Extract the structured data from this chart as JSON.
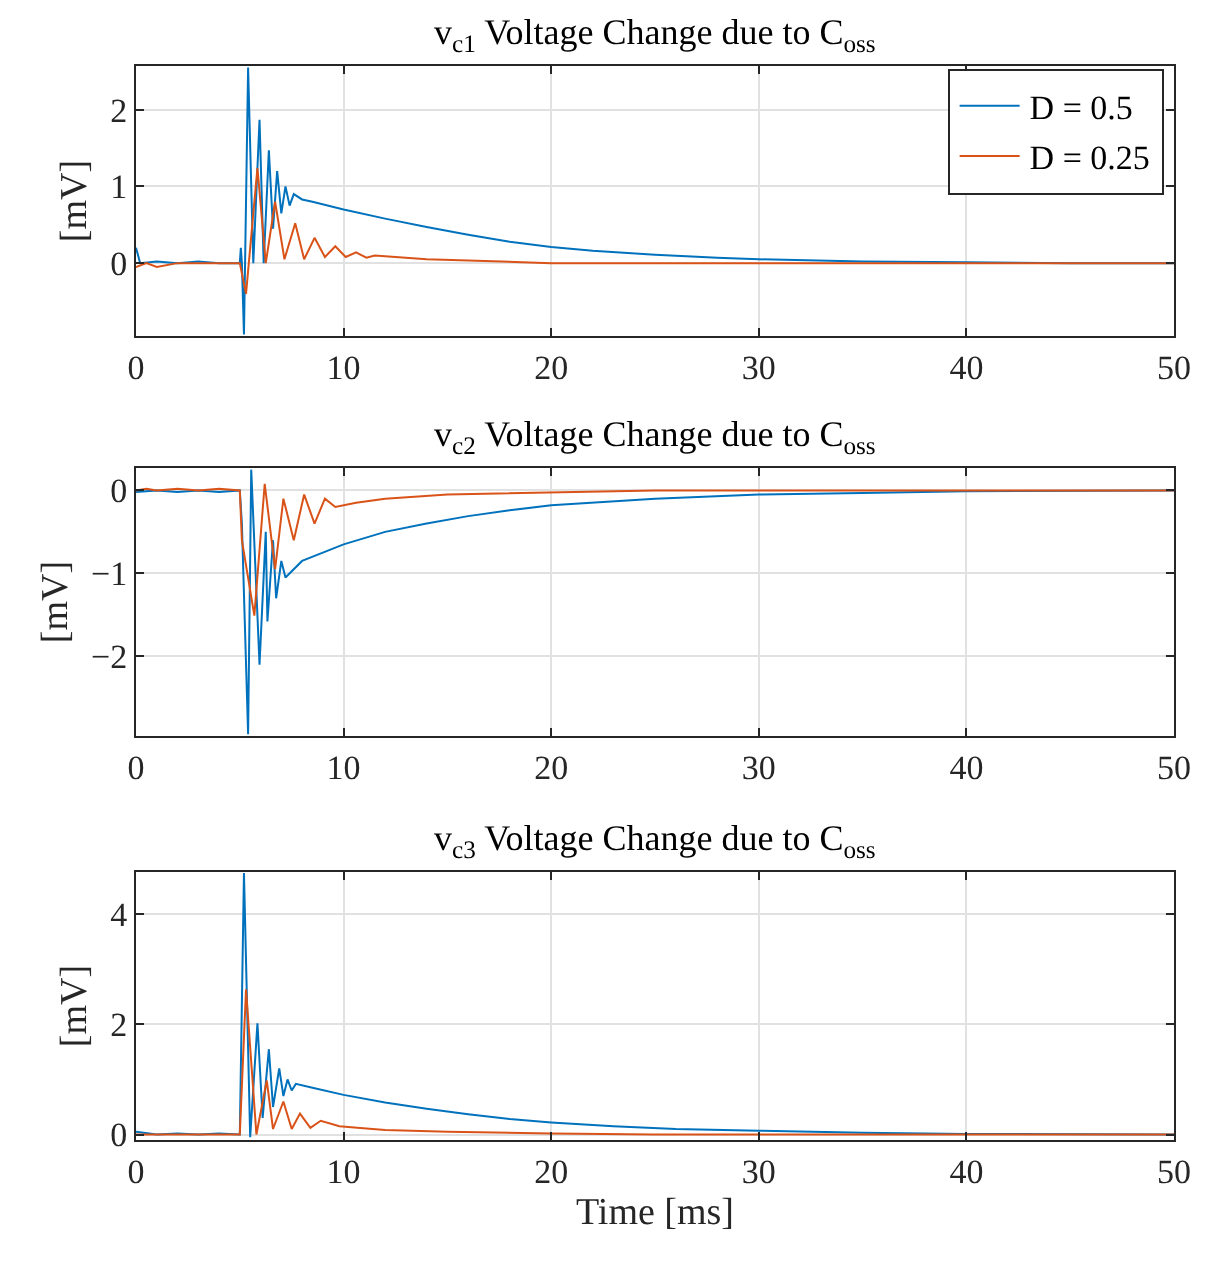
{
  "chart_data": [
    {
      "type": "line",
      "title": "v$_{c1}$ Voltage Change due to C$_{oss}$",
      "ylabel": "[mV]",
      "xlim": [
        0,
        50
      ],
      "xticks": [
        0,
        10,
        20,
        30,
        40,
        50
      ],
      "ylim": [
        -0.95,
        2.57
      ],
      "yticks": [
        0,
        1,
        2
      ],
      "grid": true,
      "legend": "top right",
      "line_style": "solid",
      "series": [
        {
          "name": "D = 0.5",
          "color": "#0072bd",
          "x": [
            0,
            0.2,
            1,
            2,
            3,
            4,
            5,
            5.05,
            5.1,
            5.2,
            5.4,
            5.65,
            5.95,
            6.15,
            6.4,
            6.6,
            6.8,
            7.0,
            7.2,
            7.4,
            7.6,
            8.0,
            8.5,
            10,
            12,
            14,
            16,
            18,
            20,
            22,
            25,
            28,
            30,
            35,
            40,
            45,
            50
          ],
          "values": [
            0.2,
            0,
            0.02,
            0,
            0.02,
            0,
            0,
            0.2,
            0,
            -0.93,
            2.55,
            0,
            1.87,
            0,
            1.47,
            0.45,
            1.2,
            0.65,
            1.0,
            0.75,
            0.9,
            0.83,
            0.8,
            0.7,
            0.58,
            0.47,
            0.37,
            0.28,
            0.21,
            0.16,
            0.11,
            0.07,
            0.05,
            0.02,
            0.01,
            0,
            0
          ]
        },
        {
          "name": "D = 0.25",
          "color": "#d95319",
          "x": [
            0,
            0.5,
            1,
            2,
            3,
            4,
            5,
            5.3,
            5.85,
            6.25,
            6.7,
            7.15,
            7.67,
            8.1,
            8.6,
            9.1,
            9.6,
            10.1,
            10.6,
            11.1,
            11.5,
            14,
            20,
            30,
            40,
            50
          ],
          "values": [
            -0.05,
            0,
            -0.05,
            0,
            0,
            0,
            0,
            -0.4,
            1.24,
            0,
            0.8,
            0.05,
            0.52,
            0.05,
            0.33,
            0.08,
            0.22,
            0.08,
            0.14,
            0.07,
            0.1,
            0.05,
            0,
            0,
            0,
            0
          ]
        }
      ]
    },
    {
      "type": "line",
      "title": "v$_{c2}$ Voltage Change due to C$_{oss}$",
      "ylabel": "[mV]",
      "xlim": [
        0,
        50
      ],
      "xticks": [
        0,
        10,
        20,
        30,
        40,
        50
      ],
      "ylim": [
        -2.96,
        0.27
      ],
      "yticks": [
        -2,
        -1,
        0
      ],
      "grid": true,
      "line_style": "solid",
      "series": [
        {
          "color": "#0072bd",
          "x": [
            0,
            1,
            2,
            3,
            4,
            5,
            5.1,
            5.4,
            5.55,
            5.95,
            6.25,
            6.33,
            6.6,
            6.75,
            7.0,
            7.2,
            8,
            9,
            10,
            12,
            14,
            16,
            18,
            20,
            25,
            30,
            35,
            40,
            50
          ],
          "values": [
            -0.02,
            0,
            -0.02,
            0,
            -0.02,
            0,
            -0.4,
            -2.94,
            0.25,
            -2.1,
            -0.5,
            -1.58,
            -0.6,
            -1.3,
            -0.85,
            -1.05,
            -0.85,
            -0.75,
            -0.65,
            -0.5,
            -0.4,
            -0.31,
            -0.24,
            -0.18,
            -0.1,
            -0.05,
            -0.03,
            -0.01,
            0
          ]
        },
        {
          "color": "#d95319",
          "x": [
            0,
            0.5,
            1,
            2,
            3,
            4,
            5,
            5.1,
            5.7,
            6.2,
            6.7,
            7.1,
            7.6,
            8.1,
            8.6,
            9.1,
            9.6,
            10.6,
            12,
            15,
            25,
            35,
            50
          ],
          "values": [
            0,
            0.02,
            0,
            0.02,
            0,
            0.02,
            0,
            -0.6,
            -1.51,
            0.08,
            -0.95,
            -0.1,
            -0.6,
            -0.05,
            -0.4,
            -0.1,
            -0.2,
            -0.15,
            -0.1,
            -0.05,
            0,
            0,
            0
          ]
        }
      ]
    },
    {
      "type": "line",
      "title": "v$_{c3}$ Voltage Change due to C$_{oss}$",
      "ylabel": "[mV]",
      "xlabel": "Time [ms]",
      "xlim": [
        0,
        50
      ],
      "xticks": [
        0,
        10,
        20,
        30,
        40,
        50
      ],
      "ylim": [
        -0.1,
        4.77
      ],
      "yticks": [
        0,
        2,
        4
      ],
      "grid": true,
      "line_style": "solid",
      "series": [
        {
          "color": "#0072bd",
          "x": [
            0,
            1,
            2,
            3,
            4,
            5,
            5.2,
            5.5,
            5.85,
            6.1,
            6.4,
            6.6,
            6.9,
            7.1,
            7.3,
            7.5,
            7.7,
            8.5,
            10,
            12,
            14,
            16,
            18,
            20,
            23,
            26,
            30,
            35,
            40,
            50
          ],
          "values": [
            0.05,
            0,
            0.02,
            0,
            0.02,
            0,
            4.75,
            -0.05,
            2.02,
            0.3,
            1.55,
            0.5,
            1.2,
            0.7,
            1.0,
            0.8,
            0.92,
            0.85,
            0.72,
            0.58,
            0.47,
            0.37,
            0.28,
            0.22,
            0.15,
            0.1,
            0.07,
            0.03,
            0.01,
            0
          ]
        },
        {
          "color": "#d95319",
          "x": [
            0,
            1,
            2,
            3,
            4,
            5,
            5.3,
            5.8,
            6.3,
            6.6,
            7.1,
            7.5,
            7.9,
            8.4,
            8.9,
            9.8,
            10.8,
            12,
            15,
            20,
            25,
            50
          ],
          "values": [
            0,
            0,
            0,
            0,
            0,
            0,
            2.64,
            0,
            0.98,
            0.1,
            0.6,
            0.1,
            0.38,
            0.12,
            0.25,
            0.15,
            0.12,
            0.08,
            0.05,
            0.02,
            0,
            0
          ]
        }
      ]
    }
  ]
}
